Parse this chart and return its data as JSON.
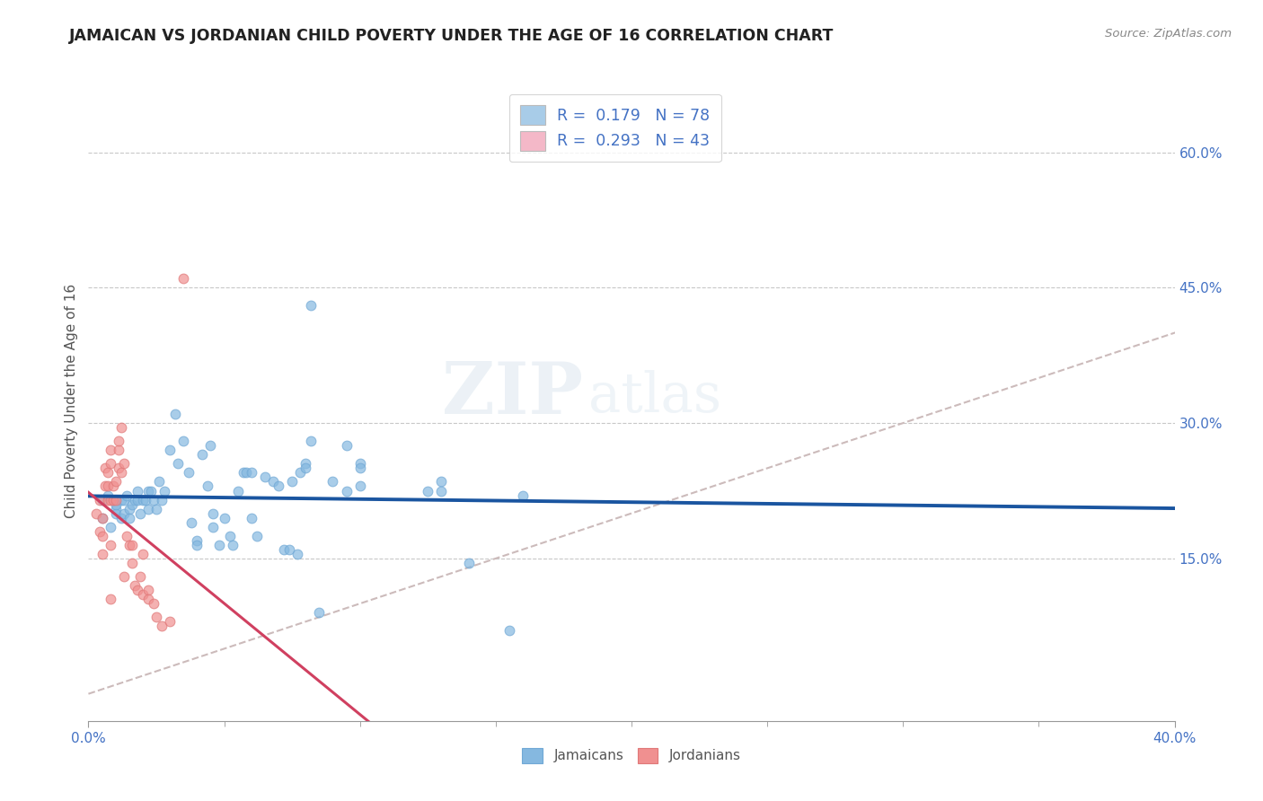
{
  "title": "JAMAICAN VS JORDANIAN CHILD POVERTY UNDER THE AGE OF 16 CORRELATION CHART",
  "source": "Source: ZipAtlas.com",
  "ylabel": "Child Poverty Under the Age of 16",
  "right_yticks": [
    "60.0%",
    "45.0%",
    "30.0%",
    "15.0%"
  ],
  "right_ytick_vals": [
    0.6,
    0.45,
    0.3,
    0.15
  ],
  "xlim": [
    0.0,
    0.4
  ],
  "ylim": [
    -0.03,
    0.68
  ],
  "watermark": "ZIPatlas",
  "legend_r1": "R =  0.179   N = 78",
  "legend_r2": "R =  0.293   N = 43",
  "jamaicans_color": "#85b8e0",
  "jordanians_color": "#f09090",
  "jamaicans_edge": "#70a8d5",
  "jordanians_edge": "#e07878",
  "trend_jamaica_color": "#1a55a0",
  "trend_jordan_color": "#d04060",
  "diagonal_color": "#ccbbbb",
  "legend_patch_jamaica": "#a8cce8",
  "legend_patch_jordan": "#f4b8c8",
  "legend_text_color": "#4472c4",
  "tick_color": "#4472c4",
  "jamaican_scatter": [
    [
      0.005,
      0.215
    ],
    [
      0.005,
      0.195
    ],
    [
      0.007,
      0.22
    ],
    [
      0.008,
      0.185
    ],
    [
      0.009,
      0.215
    ],
    [
      0.01,
      0.205
    ],
    [
      0.01,
      0.2
    ],
    [
      0.01,
      0.21
    ],
    [
      0.012,
      0.215
    ],
    [
      0.012,
      0.195
    ],
    [
      0.013,
      0.2
    ],
    [
      0.013,
      0.215
    ],
    [
      0.014,
      0.22
    ],
    [
      0.015,
      0.205
    ],
    [
      0.015,
      0.195
    ],
    [
      0.016,
      0.21
    ],
    [
      0.017,
      0.215
    ],
    [
      0.018,
      0.215
    ],
    [
      0.018,
      0.225
    ],
    [
      0.019,
      0.2
    ],
    [
      0.02,
      0.215
    ],
    [
      0.021,
      0.215
    ],
    [
      0.022,
      0.225
    ],
    [
      0.022,
      0.205
    ],
    [
      0.023,
      0.225
    ],
    [
      0.024,
      0.215
    ],
    [
      0.025,
      0.205
    ],
    [
      0.026,
      0.235
    ],
    [
      0.027,
      0.215
    ],
    [
      0.028,
      0.225
    ],
    [
      0.03,
      0.27
    ],
    [
      0.032,
      0.31
    ],
    [
      0.033,
      0.255
    ],
    [
      0.035,
      0.28
    ],
    [
      0.037,
      0.245
    ],
    [
      0.038,
      0.19
    ],
    [
      0.04,
      0.17
    ],
    [
      0.04,
      0.165
    ],
    [
      0.042,
      0.265
    ],
    [
      0.044,
      0.23
    ],
    [
      0.045,
      0.275
    ],
    [
      0.046,
      0.2
    ],
    [
      0.046,
      0.185
    ],
    [
      0.048,
      0.165
    ],
    [
      0.05,
      0.195
    ],
    [
      0.052,
      0.175
    ],
    [
      0.053,
      0.165
    ],
    [
      0.055,
      0.225
    ],
    [
      0.057,
      0.245
    ],
    [
      0.058,
      0.245
    ],
    [
      0.06,
      0.245
    ],
    [
      0.06,
      0.195
    ],
    [
      0.062,
      0.175
    ],
    [
      0.065,
      0.24
    ],
    [
      0.068,
      0.235
    ],
    [
      0.07,
      0.23
    ],
    [
      0.072,
      0.16
    ],
    [
      0.074,
      0.16
    ],
    [
      0.075,
      0.235
    ],
    [
      0.077,
      0.155
    ],
    [
      0.078,
      0.245
    ],
    [
      0.08,
      0.255
    ],
    [
      0.08,
      0.25
    ],
    [
      0.082,
      0.28
    ],
    [
      0.082,
      0.43
    ],
    [
      0.085,
      0.09
    ],
    [
      0.09,
      0.235
    ],
    [
      0.095,
      0.225
    ],
    [
      0.095,
      0.275
    ],
    [
      0.1,
      0.255
    ],
    [
      0.1,
      0.23
    ],
    [
      0.1,
      0.25
    ],
    [
      0.125,
      0.225
    ],
    [
      0.13,
      0.235
    ],
    [
      0.13,
      0.225
    ],
    [
      0.14,
      0.145
    ],
    [
      0.155,
      0.07
    ],
    [
      0.16,
      0.22
    ]
  ],
  "jordanian_scatter": [
    [
      0.003,
      0.2
    ],
    [
      0.004,
      0.18
    ],
    [
      0.004,
      0.215
    ],
    [
      0.005,
      0.195
    ],
    [
      0.005,
      0.175
    ],
    [
      0.005,
      0.155
    ],
    [
      0.006,
      0.25
    ],
    [
      0.006,
      0.23
    ],
    [
      0.007,
      0.23
    ],
    [
      0.007,
      0.245
    ],
    [
      0.007,
      0.215
    ],
    [
      0.008,
      0.27
    ],
    [
      0.008,
      0.255
    ],
    [
      0.008,
      0.215
    ],
    [
      0.008,
      0.165
    ],
    [
      0.008,
      0.105
    ],
    [
      0.009,
      0.23
    ],
    [
      0.009,
      0.215
    ],
    [
      0.01,
      0.235
    ],
    [
      0.01,
      0.215
    ],
    [
      0.011,
      0.27
    ],
    [
      0.011,
      0.25
    ],
    [
      0.011,
      0.28
    ],
    [
      0.012,
      0.295
    ],
    [
      0.012,
      0.245
    ],
    [
      0.013,
      0.255
    ],
    [
      0.013,
      0.13
    ],
    [
      0.014,
      0.175
    ],
    [
      0.015,
      0.165
    ],
    [
      0.016,
      0.145
    ],
    [
      0.016,
      0.165
    ],
    [
      0.017,
      0.12
    ],
    [
      0.018,
      0.115
    ],
    [
      0.019,
      0.13
    ],
    [
      0.02,
      0.155
    ],
    [
      0.02,
      0.11
    ],
    [
      0.022,
      0.115
    ],
    [
      0.022,
      0.105
    ],
    [
      0.024,
      0.1
    ],
    [
      0.025,
      0.085
    ],
    [
      0.027,
      0.075
    ],
    [
      0.03,
      0.08
    ],
    [
      0.035,
      0.46
    ]
  ]
}
